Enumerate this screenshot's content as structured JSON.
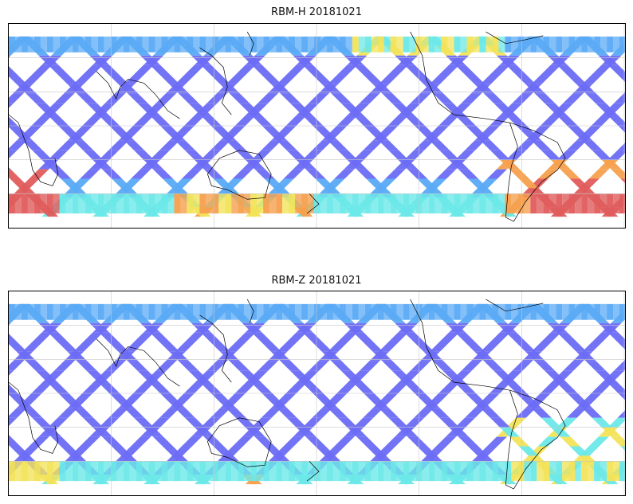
{
  "panels": [
    {
      "title": "RBM-H 20181021",
      "variant": "H"
    },
    {
      "title": "RBM-Z 20181021",
      "variant": "Z"
    }
  ],
  "colors": {
    "blue": "#6b6bf5",
    "lightblue": "#5aaaf6",
    "cyan": "#6be8e8",
    "yellow": "#f2e35a",
    "orange": "#f5a04e",
    "red": "#e05c5c",
    "coast": "#000000",
    "grid": "#c8c8c8"
  },
  "colormap": "jet",
  "grid": true
}
